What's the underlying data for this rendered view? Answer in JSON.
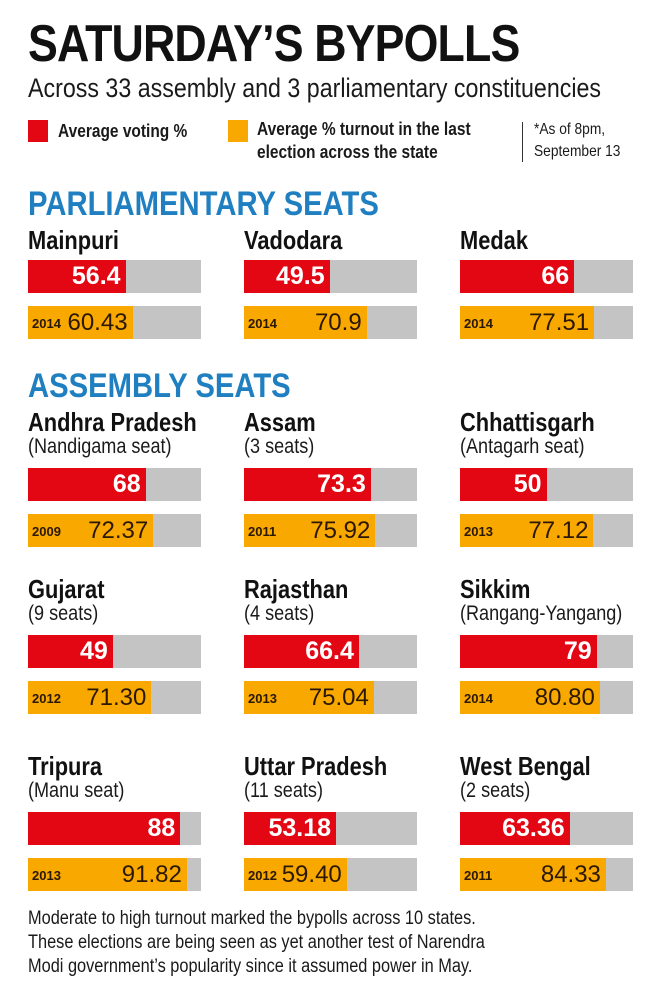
{
  "header": {
    "title": "SATURDAY’S BYPOLLS",
    "subtitle": "Across 33 assembly and 3 parliamentary constituencies"
  },
  "legend": {
    "current": {
      "label": "Average voting %",
      "color": "#e30613"
    },
    "previous": {
      "label_line1": "Average % turnout in the last",
      "label_line2": "election across the state",
      "color": "#f9a800"
    },
    "note_line1": "*As of 8pm,",
    "note_line2": "September 13"
  },
  "sections": {
    "parliamentary": "PARLIAMENTARY SEATS",
    "assembly": "ASSEMBLY SEATS"
  },
  "footer": {
    "line1": "Moderate to high turnout marked the bypolls across 10 states.",
    "line2": "These elections are being seen as yet another test of Narendra",
    "line3": "Modi government’s popularity since it assumed power in May."
  },
  "chart_data": {
    "type": "bar",
    "title": "SATURDAY’S BYPOLLS",
    "subtitle": "Across 33 assembly and 3 parliamentary constituencies",
    "xlim": [
      0,
      100
    ],
    "series_names": [
      "Average voting %",
      "Average % turnout in the last election across the state"
    ],
    "items": [
      {
        "group": "PARLIAMENTARY SEATS",
        "name": "Mainpuri",
        "sub": "",
        "current": 56.4,
        "current_label": "56.4",
        "prev_year": "2014",
        "previous": 60.43,
        "previous_label": "60.43"
      },
      {
        "group": "PARLIAMENTARY SEATS",
        "name": "Vadodara",
        "sub": "",
        "current": 49.5,
        "current_label": "49.5",
        "prev_year": "2014",
        "previous": 70.9,
        "previous_label": "70.9"
      },
      {
        "group": "PARLIAMENTARY SEATS",
        "name": "Medak",
        "sub": "",
        "current": 66,
        "current_label": "66",
        "prev_year": "2014",
        "previous": 77.51,
        "previous_label": "77.51"
      },
      {
        "group": "ASSEMBLY SEATS",
        "name": "Andhra Pradesh",
        "sub": "(Nandigama seat)",
        "current": 68,
        "current_label": "68",
        "prev_year": "2009",
        "previous": 72.37,
        "previous_label": "72.37"
      },
      {
        "group": "ASSEMBLY SEATS",
        "name": "Assam",
        "sub": "(3 seats)",
        "current": 73.3,
        "current_label": "73.3",
        "prev_year": "2011",
        "previous": 75.92,
        "previous_label": "75.92"
      },
      {
        "group": "ASSEMBLY SEATS",
        "name": "Chhattisgarh",
        "sub": "(Antagarh seat)",
        "current": 50,
        "current_label": "50",
        "prev_year": "2013",
        "previous": 77.12,
        "previous_label": "77.12"
      },
      {
        "group": "ASSEMBLY SEATS",
        "name": "Gujarat",
        "sub": "(9 seats)",
        "current": 49,
        "current_label": "49",
        "prev_year": "2012",
        "previous": 71.3,
        "previous_label": "71.30"
      },
      {
        "group": "ASSEMBLY SEATS",
        "name": "Rajasthan",
        "sub": "(4 seats)",
        "current": 66.4,
        "current_label": "66.4",
        "prev_year": "2013",
        "previous": 75.04,
        "previous_label": "75.04"
      },
      {
        "group": "ASSEMBLY SEATS",
        "name": "Sikkim",
        "sub": "(Rangang-Yangang)",
        "current": 79,
        "current_label": "79",
        "prev_year": "2014",
        "previous": 80.8,
        "previous_label": "80.80"
      },
      {
        "group": "ASSEMBLY SEATS",
        "name": "Tripura",
        "sub": "(Manu seat)",
        "current": 88,
        "current_label": "88",
        "prev_year": "2013",
        "previous": 91.82,
        "previous_label": "91.82"
      },
      {
        "group": "ASSEMBLY SEATS",
        "name": "Uttar Pradesh",
        "sub": "(11 seats)",
        "current": 53.18,
        "current_label": "53.18",
        "prev_year": "2012",
        "previous": 59.4,
        "previous_label": "59.40"
      },
      {
        "group": "ASSEMBLY SEATS",
        "name": "West Bengal",
        "sub": "(2 seats)",
        "current": 63.36,
        "current_label": "63.36",
        "prev_year": "2011",
        "previous": 84.33,
        "previous_label": "84.33"
      }
    ]
  }
}
